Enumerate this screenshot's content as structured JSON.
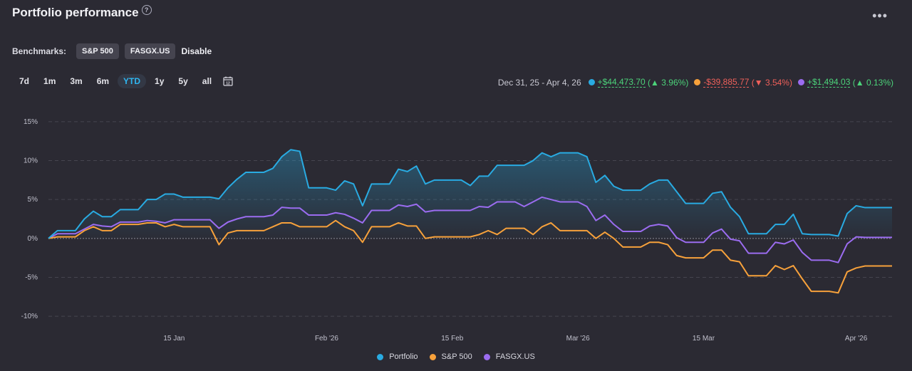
{
  "header": {
    "title": "Portfolio performance",
    "help_symbol": "?",
    "more_symbol": "•••"
  },
  "benchmarks": {
    "label": "Benchmarks:",
    "chips": [
      "S&P 500",
      "FASGX.US"
    ],
    "disable_label": "Disable"
  },
  "ranges": [
    {
      "label": "7d",
      "active": false
    },
    {
      "label": "1m",
      "active": false
    },
    {
      "label": "3m",
      "active": false
    },
    {
      "label": "6m",
      "active": false
    },
    {
      "label": "YTD",
      "active": true
    },
    {
      "label": "1y",
      "active": false
    },
    {
      "label": "5y",
      "active": false
    },
    {
      "label": "all",
      "active": false
    }
  ],
  "summary": {
    "date_range": "Dec 31, 25 - Apr 4, 26",
    "items": [
      {
        "name": "Portfolio",
        "color": "#29abe2",
        "value": "+$44,473.70",
        "pct": "3.96%",
        "direction": "up"
      },
      {
        "name": "S&P 500",
        "color": "#f7a13b",
        "value": "-$39,885.77",
        "pct": "3.54%",
        "direction": "down"
      },
      {
        "name": "FASGX.US",
        "color": "#9b6cf0",
        "value": "+$1,494.03",
        "pct": "0.13%",
        "direction": "up"
      }
    ]
  },
  "chart_data": {
    "type": "line",
    "x": [
      0,
      1,
      2,
      3,
      4,
      5,
      6,
      7,
      8,
      9,
      10,
      11,
      12,
      13,
      14,
      15,
      16,
      17,
      18,
      19,
      20,
      21,
      22,
      23,
      24,
      25,
      26,
      27,
      28,
      29,
      30,
      31,
      32,
      33,
      34,
      35,
      36,
      37,
      38,
      39,
      40,
      41,
      42,
      43,
      44,
      45,
      46,
      47,
      48,
      49,
      50,
      51,
      52,
      53,
      54,
      55,
      56,
      57,
      58,
      59,
      60,
      61,
      62,
      63,
      64,
      65,
      66,
      67,
      68,
      69,
      70,
      71,
      72,
      73,
      74,
      75,
      76,
      77,
      78,
      79,
      80,
      81,
      82,
      83,
      84,
      85,
      86,
      87,
      88,
      89,
      90,
      91,
      92,
      93,
      94
    ],
    "x_tick_labels": [
      {
        "label": "15 Jan",
        "x": 14
      },
      {
        "label": "Feb '26",
        "x": 31
      },
      {
        "label": "15 Feb",
        "x": 45
      },
      {
        "label": "Mar '26",
        "x": 59
      },
      {
        "label": "15 Mar",
        "x": 73
      },
      {
        "label": "Apr '26",
        "x": 90
      }
    ],
    "y_ticks": [
      15,
      10,
      5,
      0,
      -5,
      -10
    ],
    "y_tick_labels": [
      "15%",
      "10%",
      "5%",
      "0%",
      "-5%",
      "-10%"
    ],
    "ylim": [
      -11,
      16
    ],
    "ylabel": "%",
    "series": [
      {
        "name": "Portfolio",
        "color": "#29abe2",
        "values": [
          0,
          1,
          1,
          1,
          2.5,
          3.5,
          2.8,
          2.8,
          3.7,
          3.7,
          3.7,
          5,
          5,
          5.7,
          5.7,
          5.3,
          5.3,
          5.3,
          5.3,
          5.1,
          6.5,
          7.6,
          8.5,
          8.5,
          8.5,
          9,
          10.5,
          11.4,
          11.2,
          6.5,
          6.5,
          6.5,
          6.2,
          7.4,
          7,
          4.2,
          7,
          7,
          7,
          8.9,
          8.6,
          9.3,
          7,
          7.5,
          7.5,
          7.5,
          7.5,
          6.8,
          8,
          8,
          9.4,
          9.4,
          9.4,
          9.4,
          10,
          11,
          10.5,
          11,
          11,
          11,
          10.5,
          7.2,
          8.1,
          6.7,
          6.2,
          6.2,
          6.2,
          7,
          7.5,
          7.5,
          6,
          4.5,
          4.5,
          4.5,
          5.8,
          6,
          4,
          2.8,
          0.6,
          0.6,
          0.6,
          1.8,
          1.8,
          3.1,
          0.6,
          0.5,
          0.5,
          0.5,
          0.3,
          3.2,
          4.2,
          3.96,
          3.96,
          3.96,
          3.96
        ]
      },
      {
        "name": "S&P 500",
        "color": "#f7a13b",
        "values": [
          0,
          0.2,
          0.2,
          0.2,
          1,
          1.5,
          1,
          1,
          1.8,
          1.8,
          1.8,
          2,
          2,
          1.5,
          1.8,
          1.5,
          1.5,
          1.5,
          1.5,
          -0.8,
          0.7,
          1,
          1,
          1,
          1,
          1.5,
          2,
          2,
          1.5,
          1.5,
          1.5,
          1.5,
          2.3,
          1.5,
          1,
          -0.5,
          1.5,
          1.5,
          1.5,
          2,
          1.6,
          1.6,
          0,
          0.2,
          0.2,
          0.2,
          0.2,
          0.2,
          0.5,
          1,
          0.5,
          1.3,
          1.3,
          1.3,
          0.5,
          1.5,
          2,
          1,
          1,
          1,
          1,
          0,
          0.8,
          0,
          -1.1,
          -1.1,
          -1.1,
          -0.5,
          -0.5,
          -0.8,
          -2.2,
          -2.5,
          -2.5,
          -2.5,
          -1.5,
          -1.5,
          -2.8,
          -3,
          -4.8,
          -4.8,
          -4.8,
          -3.5,
          -4,
          -3.5,
          -5.2,
          -6.8,
          -6.8,
          -6.8,
          -7,
          -4.3,
          -3.8,
          -3.54,
          -3.54,
          -3.54,
          -3.54
        ]
      },
      {
        "name": "FASGX.US",
        "color": "#9b6cf0",
        "values": [
          0,
          0.6,
          0.6,
          0.6,
          1.2,
          1.8,
          1.6,
          1.5,
          2.1,
          2.1,
          2.1,
          2.3,
          2.2,
          2,
          2.4,
          2.4,
          2.4,
          2.4,
          2.4,
          1.3,
          2.1,
          2.5,
          2.8,
          2.8,
          2.8,
          3,
          4,
          3.9,
          3.9,
          3,
          3,
          3,
          3.3,
          3.1,
          2.6,
          2,
          3.6,
          3.6,
          3.6,
          4.3,
          4.1,
          4.4,
          3.4,
          3.6,
          3.6,
          3.6,
          3.6,
          3.6,
          4.1,
          4,
          4.7,
          4.7,
          4.7,
          4.1,
          4.7,
          5.3,
          5,
          4.7,
          4.7,
          4.7,
          4.1,
          2.3,
          3,
          1.8,
          0.9,
          0.9,
          0.9,
          1.6,
          1.8,
          1.6,
          0.1,
          -0.5,
          -0.5,
          -0.5,
          0.7,
          1.2,
          -0.1,
          -0.3,
          -1.9,
          -1.9,
          -1.9,
          -0.5,
          -0.7,
          -0.2,
          -1.8,
          -2.8,
          -2.8,
          -2.8,
          -3.1,
          -0.7,
          0.2,
          0.13,
          0.13,
          0.13,
          0.13
        ]
      }
    ]
  }
}
